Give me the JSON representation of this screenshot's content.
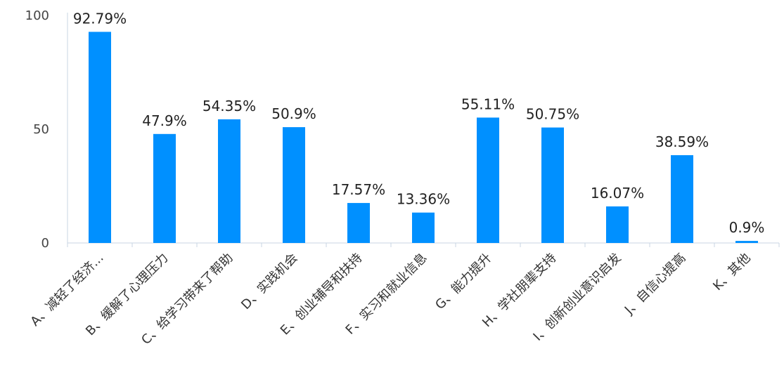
{
  "chart_data": {
    "type": "bar",
    "categories": [
      "A、减轻了经济...",
      "B、缓解了心理压力",
      "C、给学习带来了帮助",
      "D、实践机会",
      "E、创业辅导和扶持",
      "F、实习和就业信息",
      "G、能力提升",
      "H、学社朋辈支持",
      "I、创新创业意识启发",
      "J、自信心提高",
      "K、其他"
    ],
    "values": [
      92.79,
      47.9,
      54.35,
      50.9,
      17.57,
      13.36,
      55.11,
      50.75,
      16.07,
      38.59,
      0.9
    ],
    "data_labels": [
      "92.79%",
      "47.9%",
      "54.35%",
      "50.9%",
      "17.57%",
      "13.36%",
      "55.11%",
      "50.75%",
      "16.07%",
      "38.59%",
      "0.9%"
    ],
    "ylim": [
      0,
      100
    ],
    "yticks": [
      0,
      50,
      100
    ],
    "ytick_labels": [
      "0",
      "50",
      "100"
    ],
    "bar_color": "#0090ff",
    "axis_color": "#c9d6e3",
    "grid": false,
    "title": "",
    "xlabel": "",
    "ylabel": ""
  }
}
